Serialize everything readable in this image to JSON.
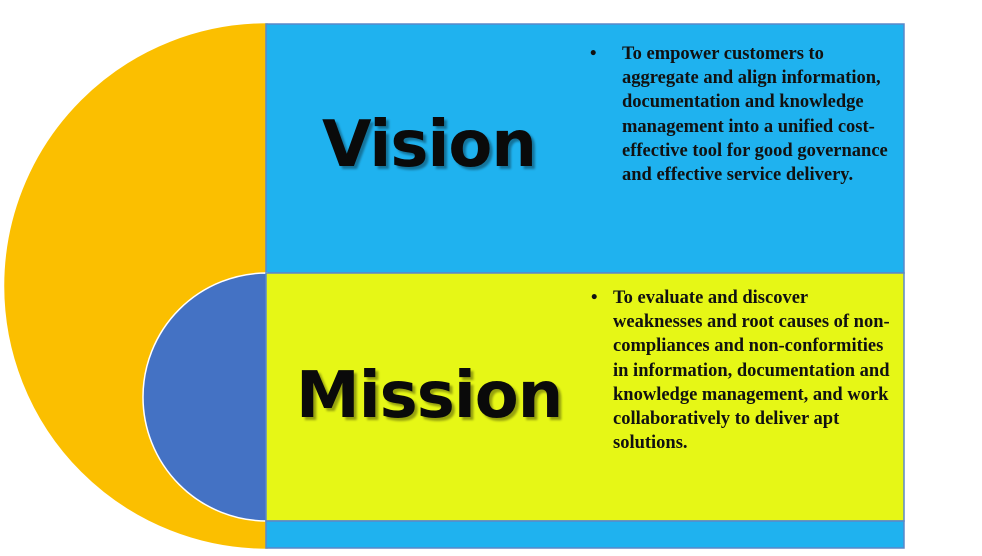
{
  "colors": {
    "outer_arc": "#fbbf00",
    "inner_circle": "#4472c4",
    "vision_panel": "#1fb2ef",
    "mission_panel": "#e6f716",
    "panel_border": "#5b88c8",
    "bottom_strip": "#1fb2ef"
  },
  "vision": {
    "heading": "Vision",
    "bullet_symbol": "•",
    "bullets": [
      "To empower customers to aggregate and align information, documentation and knowledge management into a unified cost-effective tool for good governance and effective service delivery."
    ]
  },
  "mission": {
    "heading": "Mission",
    "bullet_symbol": "•",
    "bullets": [
      "To evaluate and discover weaknesses and root causes of non-compliances and non-conformities in information, documentation and knowledge management, and work collaboratively to deliver apt solutions."
    ]
  }
}
